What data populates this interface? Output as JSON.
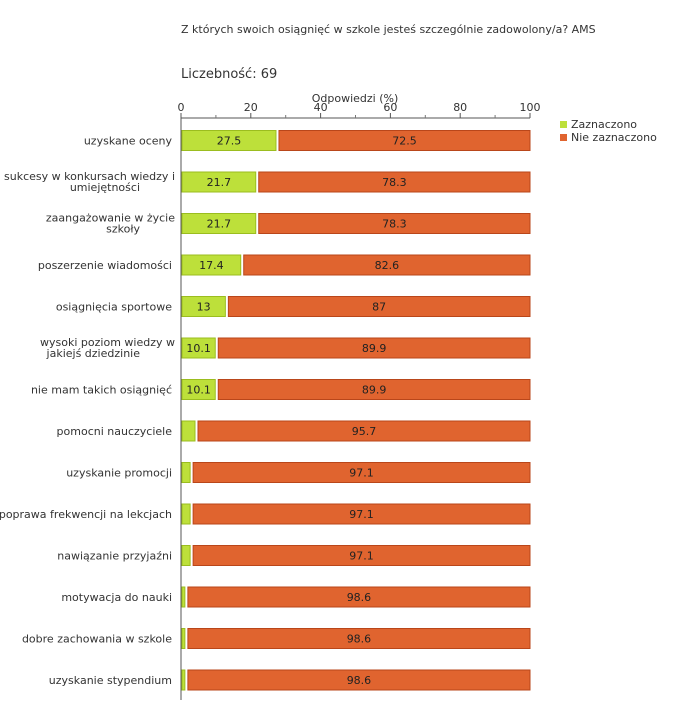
{
  "title": "Z których swoich osiągnięć w szkole jesteś szczególnie zadowolony/a? AMS",
  "sample_size_label": "Liczebność: 69",
  "legend": [
    {
      "name": "Zaznaczono",
      "color": "#bde03a"
    },
    {
      "name": "Nie zaznaczono",
      "color": "#e0642f"
    }
  ],
  "chart_data": {
    "type": "bar",
    "orientation": "horizontal",
    "stacked": true,
    "title": "Z których swoich osiągnięć w szkole jesteś szczególnie zadowolony/a? AMS",
    "xlabel": "Odpowiedzi (%)",
    "xlim": [
      0,
      100
    ],
    "xticks": [
      "0",
      "20",
      "40",
      "60",
      "80",
      "100"
    ],
    "categories": [
      [
        "uzyskane oceny"
      ],
      [
        "sukcesy w konkursach wiedzy i",
        "umiejętności"
      ],
      [
        "zaangażowanie w życie",
        "szkoły"
      ],
      [
        "poszerzenie wiadomości"
      ],
      [
        "osiągnięcia sportowe"
      ],
      [
        "wysoki poziom wiedzy w",
        "jakiejś dziedzinie"
      ],
      [
        "nie mam takich osiągnięć"
      ],
      [
        "pomocni nauczyciele"
      ],
      [
        "uzyskanie promocji"
      ],
      [
        "poprawa frekwencji na lekcjach"
      ],
      [
        "nawiązanie przyjaźni"
      ],
      [
        "motywacja do nauki"
      ],
      [
        "dobre zachowania w szkole"
      ],
      [
        "uzyskanie stypendium"
      ]
    ],
    "series": [
      {
        "name": "Zaznaczono",
        "color": "#bde03a",
        "values": [
          27.5,
          21.7,
          21.7,
          17.4,
          13,
          10.1,
          10.1,
          4.3,
          2.9,
          2.9,
          2.9,
          1.4,
          1.4,
          1.4
        ],
        "labels": [
          "27.5",
          "21.7",
          "21.7",
          "17.4",
          "13",
          "10.1",
          "10.1",
          "",
          "",
          "",
          "",
          "",
          "",
          ""
        ]
      },
      {
        "name": "Nie zaznaczono",
        "color": "#e0642f",
        "values": [
          72.5,
          78.3,
          78.3,
          82.6,
          87,
          89.9,
          89.9,
          95.7,
          97.1,
          97.1,
          97.1,
          98.6,
          98.6,
          98.6
        ],
        "labels": [
          "72.5",
          "78.3",
          "78.3",
          "82.6",
          "87",
          "89.9",
          "89.9",
          "95.7",
          "97.1",
          "97.1",
          "97.1",
          "98.6",
          "98.6",
          "98.6"
        ]
      }
    ]
  }
}
